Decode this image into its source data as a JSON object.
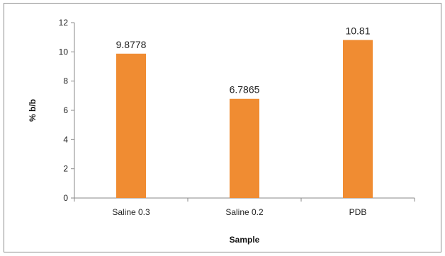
{
  "chart_data": {
    "type": "bar",
    "categories": [
      "Saline 0.3",
      "Saline 0.2",
      "PDB"
    ],
    "values": [
      9.8778,
      6.7865,
      10.81
    ],
    "data_labels": [
      "9.8778",
      "6.7865",
      "10.81"
    ],
    "title": "",
    "xlabel": "Sample",
    "ylabel": "% b/b",
    "ylim": [
      0,
      12
    ],
    "yticks": [
      0,
      2,
      4,
      6,
      8,
      10,
      12
    ],
    "grid": false,
    "legend": "none",
    "bar_color": "#f08c32"
  }
}
